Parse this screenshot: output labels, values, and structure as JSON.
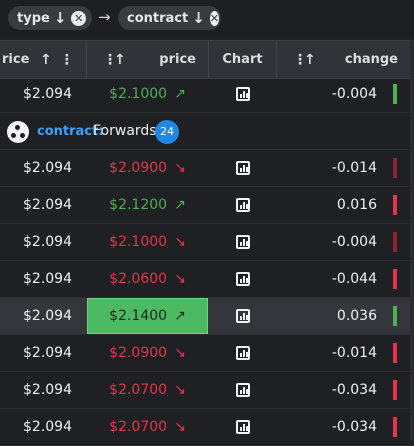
{
  "grouping": {
    "chips": [
      {
        "label": "type",
        "sort_arrow": "↓",
        "remove": "✕"
      },
      {
        "label": "contract",
        "sort_arrow": "↓",
        "remove": "✕"
      }
    ],
    "separator": "→"
  },
  "header": {
    "last_price": "rice",
    "price": "price",
    "chart": "Chart",
    "change": "change",
    "sort_up": "↑",
    "menu": "⋮"
  },
  "group": {
    "key": "contract:",
    "value": "Forwards",
    "count": "24"
  },
  "colors": {
    "up": "#4caf50",
    "down": "#e5334b",
    "flash": "#4cba63",
    "group_key": "#3ea0ff",
    "badge": "#1e88e5"
  },
  "rows": [
    {
      "last": "$2.094",
      "price": "$2.1000",
      "dir": "up",
      "trend": "↗",
      "change": "-0.004",
      "bar": "up"
    },
    {
      "last": "$2.094",
      "price": "$2.0900",
      "dir": "down",
      "trend": "↘",
      "change": "-0.014",
      "bar": "down-dark"
    },
    {
      "last": "$2.094",
      "price": "$2.1200",
      "dir": "up",
      "trend": "↗",
      "change": "0.016",
      "bar": "down"
    },
    {
      "last": "$2.094",
      "price": "$2.1000",
      "dir": "down",
      "trend": "↘",
      "change": "-0.004",
      "bar": "down-dark"
    },
    {
      "last": "$2.094",
      "price": "$2.0600",
      "dir": "down",
      "trend": "↘",
      "change": "-0.044",
      "bar": "down"
    },
    {
      "last": "$2.094",
      "price": "$2.1400",
      "dir": "flash",
      "trend": "↗",
      "change": "0.036",
      "bar": "up"
    },
    {
      "last": "$2.094",
      "price": "$2.0900",
      "dir": "down",
      "trend": "↘",
      "change": "-0.014",
      "bar": "down"
    },
    {
      "last": "$2.094",
      "price": "$2.0700",
      "dir": "down",
      "trend": "↘",
      "change": "-0.034",
      "bar": "down"
    },
    {
      "last": "$2.094",
      "price": "$2.0700",
      "dir": "down",
      "trend": "↘",
      "change": "-0.034",
      "bar": "down"
    }
  ]
}
